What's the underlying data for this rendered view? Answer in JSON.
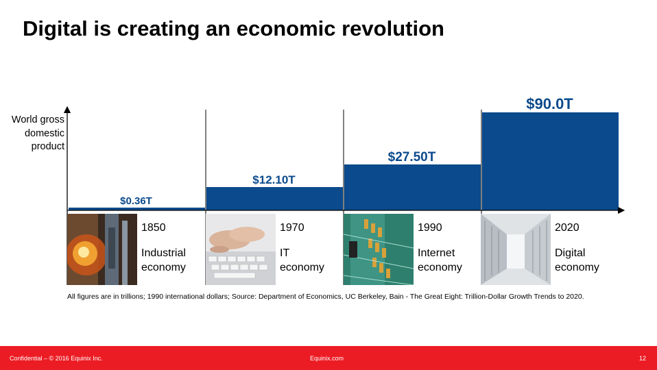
{
  "title": "Digital is creating an economic revolution",
  "chart_data": {
    "type": "bar",
    "ylabel": "World gross domestic product",
    "categories": [
      "1850",
      "1970",
      "1990",
      "2020"
    ],
    "values": [
      0.36,
      12.1,
      27.5,
      90.0
    ],
    "value_labels": [
      "$0.36T",
      "$12.10T",
      "$27.50T",
      "$90.0T"
    ],
    "era_labels": [
      "Industrial economy",
      "IT economy",
      "Internet economy",
      "Digital economy"
    ],
    "bar_color": "#0b4a8c",
    "value_label_color": "#0b4a8c"
  },
  "eras": [
    {
      "year": "1850",
      "line1": "Industrial",
      "line2": "economy",
      "image": "steel-mill-photo"
    },
    {
      "year": "1970",
      "line1": "IT",
      "line2": "economy",
      "image": "typing-keyboard-photo"
    },
    {
      "year": "1990",
      "line1": "Internet",
      "line2": "economy",
      "image": "circuit-board-photo"
    },
    {
      "year": "2020",
      "line1": "Digital",
      "line2": "economy",
      "image": "data-center-photo"
    }
  ],
  "note": "All figures are in trillions; 1990 international dollars; Source: Department of Economics, UC Berkeley, Bain - The Great Eight: Trillion-Dollar Growth Trends to 2020.",
  "footer": {
    "confidential": "Confidential – © 2016 Equinix Inc.",
    "site": "Equinix.com",
    "page": "12"
  },
  "colors": {
    "accent": "#ec1c24",
    "bar": "#0b4a8c"
  }
}
